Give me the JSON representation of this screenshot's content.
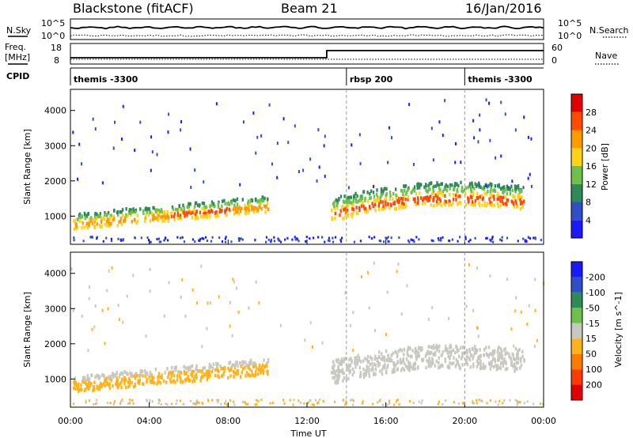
{
  "header": {
    "station": "Blackstone (fitACF)",
    "beam": "Beam 21",
    "date": "16/Jan/2016"
  },
  "status_panels": {
    "nsky_label": "N.Sky",
    "nsky_ticks": [
      "10^5",
      "10^0"
    ],
    "nsearch_label": "N.Search",
    "nsearch_ticks": [
      "10^5",
      "10^0"
    ],
    "freq_label": "Freq.",
    "freq_unit": "[MHz]",
    "freq_ticks": [
      "18",
      "8"
    ],
    "nave_label": "Nave",
    "nave_ticks": [
      "60",
      "0"
    ],
    "cpid_label": "CPID",
    "cpid_segments": [
      {
        "label": "themis -3300",
        "start_hour": 0,
        "end_hour": 14
      },
      {
        "label": "rbsp 200",
        "start_hour": 14,
        "end_hour": 20
      },
      {
        "label": "themis -3300",
        "start_hour": 20,
        "end_hour": 24
      }
    ],
    "freq_change_hour": 13.0
  },
  "chart_data": [
    {
      "type": "heatmap",
      "name": "power",
      "ylabel": "Slant Range [km]",
      "yticks": [
        "1000",
        "2000",
        "3000",
        "4000"
      ],
      "ylim": [
        200,
        4600
      ],
      "colorbar_label": "Power [dB]",
      "colorbar_ticks": [
        "4",
        "8",
        "12",
        "16",
        "20",
        "24",
        "28"
      ],
      "colorbar_range": [
        0,
        32
      ],
      "colors": [
        "#1a1aff",
        "#3050c8",
        "#2e8b57",
        "#6fbf4b",
        "#ffd21a",
        "#ff9a00",
        "#ff4a00",
        "#e00000"
      ],
      "blobs": [
        {
          "t0": 0.1,
          "t1": 10.0,
          "r0": 650,
          "r1": 1500,
          "peak_t": 7.0,
          "peak_r": 900,
          "level": 22
        },
        {
          "t0": 13.2,
          "t1": 23.0,
          "r0": 900,
          "r1": 2200,
          "peak_t": 17.5,
          "peak_r": 1250,
          "level": 20
        }
      ]
    },
    {
      "type": "heatmap",
      "name": "velocity",
      "ylabel": "Slant Range [km]",
      "yticks": [
        "1000",
        "2000",
        "3000",
        "4000"
      ],
      "ylim": [
        200,
        4600
      ],
      "colorbar_label": "Velocity [m s^-1]",
      "colorbar_ticks": [
        "200",
        "100",
        "50",
        "15",
        "-15",
        "-50",
        "-100",
        "-200"
      ],
      "colors": [
        "#1a1aff",
        "#3050c8",
        "#2e8b57",
        "#6fbf4b",
        "#c8c8c0",
        "#ffb31a",
        "#ff7a00",
        "#ff3a00",
        "#e00000"
      ],
      "blobs": [
        {
          "t0": 0.1,
          "t1": 10.0,
          "r0": 650,
          "r1": 1500,
          "dominant": "orange"
        },
        {
          "t0": 13.2,
          "t1": 23.0,
          "r0": 900,
          "r1": 2200,
          "dominant": "gray"
        }
      ]
    }
  ],
  "xaxis": {
    "label": "Time UT",
    "ticks": [
      "00:00",
      "04:00",
      "08:00",
      "12:00",
      "16:00",
      "20:00",
      "00:00"
    ],
    "range_hours": [
      0,
      24
    ]
  }
}
